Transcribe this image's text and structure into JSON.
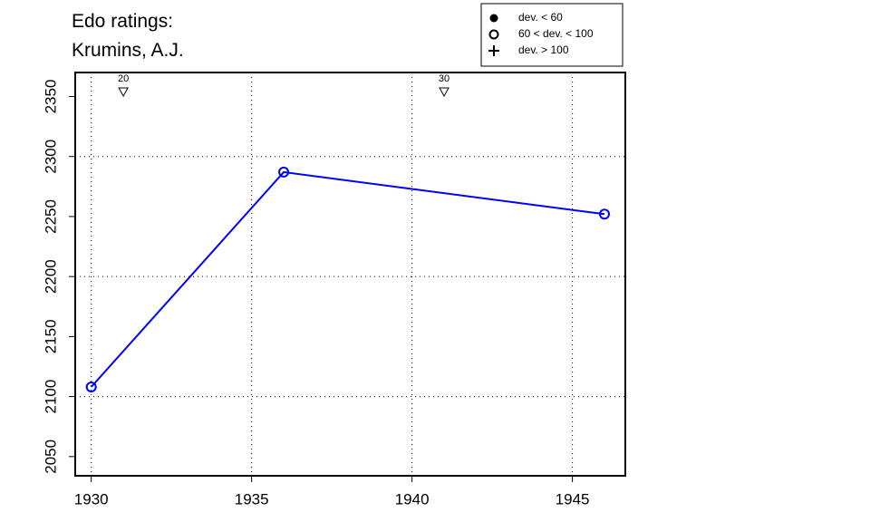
{
  "chart_data": {
    "type": "line",
    "title": [
      "Edo ratings:",
      "Krumins, A.J."
    ],
    "x": [
      1930,
      1936,
      1946
    ],
    "series": [
      {
        "color": "#0000ff",
        "values": [
          2108,
          2287,
          2252
        ],
        "marker": "open-circle"
      }
    ],
    "xlim": [
      1929.5,
      1946.65
    ],
    "ylim": [
      2034,
      2370
    ],
    "xticks": [
      1930,
      1935,
      1940,
      1945
    ],
    "yticks": [
      2050,
      2100,
      2150,
      2200,
      2250,
      2300,
      2350
    ],
    "grid": true,
    "grid_y": [
      2100,
      2200,
      2300
    ],
    "annotations": [
      {
        "x": 1931,
        "text": "20"
      },
      {
        "x": 1941,
        "text": "30"
      }
    ],
    "legend_position": "top-right",
    "legend": [
      {
        "label": "dev. < 60",
        "symbol": "filled-circle"
      },
      {
        "label": "60 < dev. < 100",
        "symbol": "open-circle"
      },
      {
        "label": "dev. > 100",
        "symbol": "plus"
      }
    ]
  }
}
